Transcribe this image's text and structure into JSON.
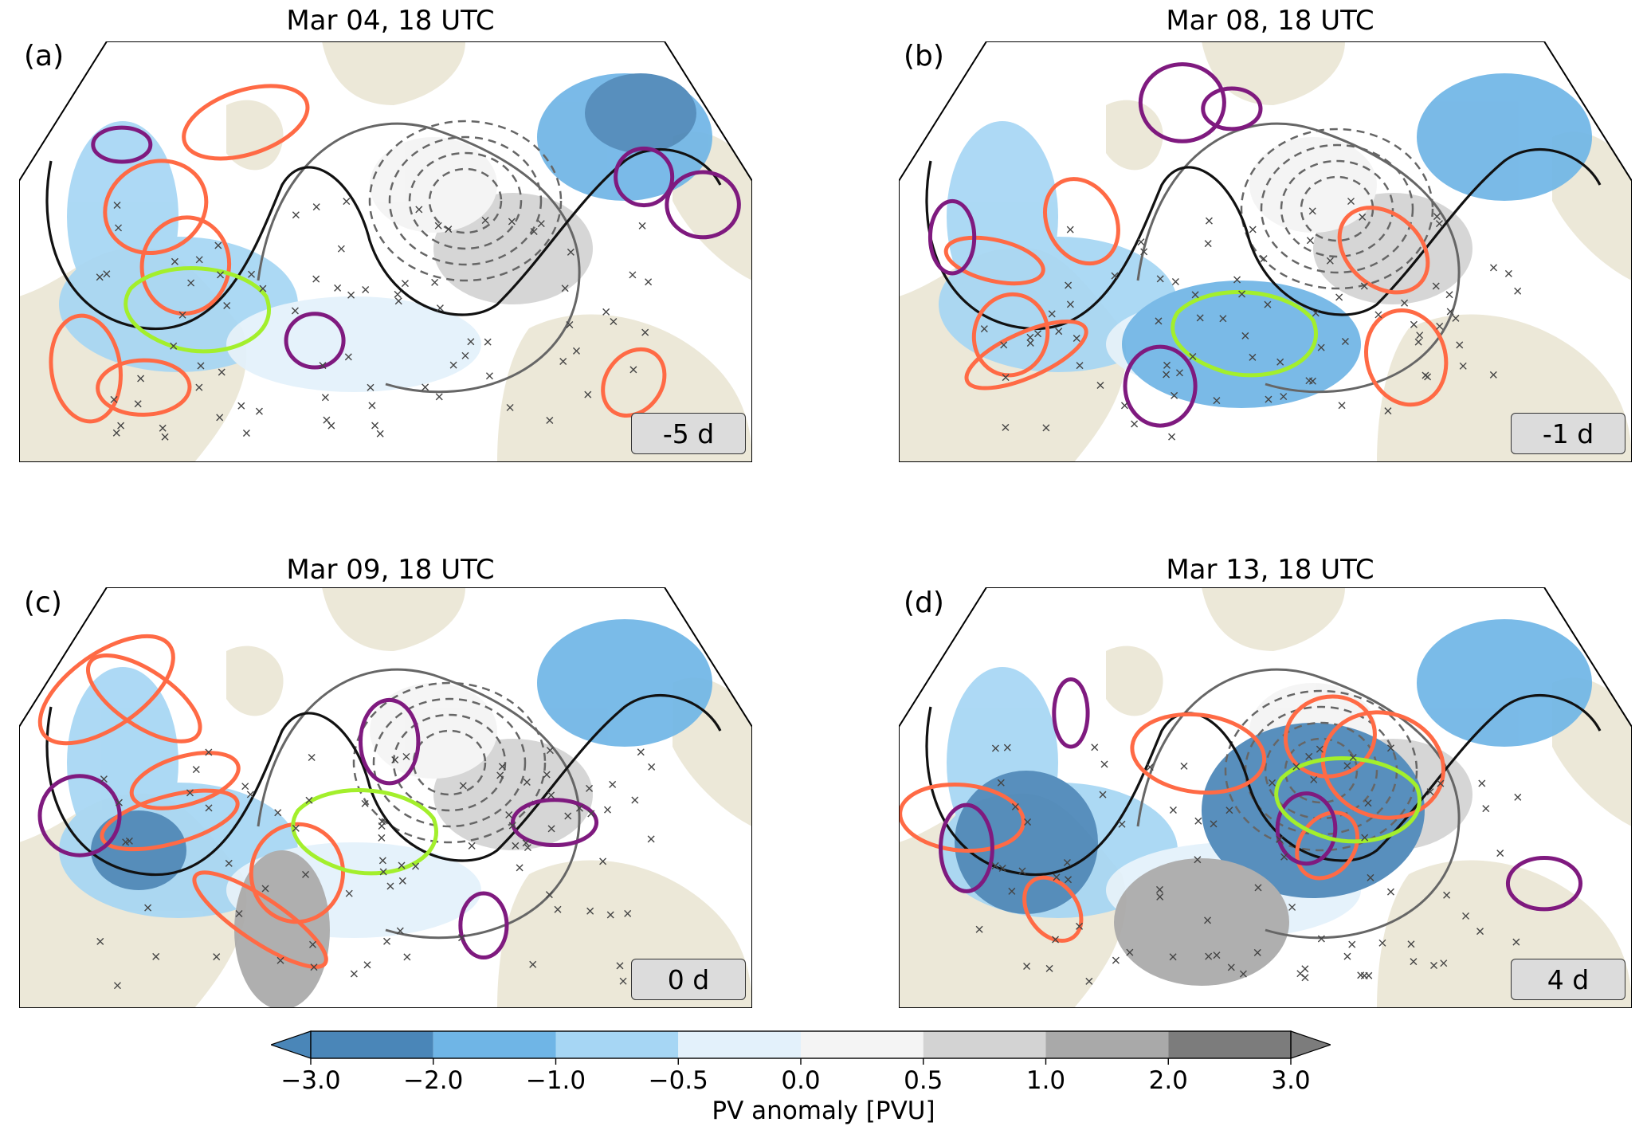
{
  "panels": [
    {
      "letter": "(a)",
      "title": "Mar 04, 18 UTC",
      "lead": "-5 d"
    },
    {
      "letter": "(b)",
      "title": "Mar 08, 18 UTC",
      "lead": "-1 d"
    },
    {
      "letter": "(c)",
      "title": "Mar 09, 18 UTC",
      "lead": "0 d"
    },
    {
      "letter": "(d)",
      "title": "Mar 13, 18 UTC",
      "lead": "4 d"
    }
  ],
  "colorbar": {
    "label": "PV anomaly [PVU]",
    "ticks": [
      "−3.0",
      "−2.0",
      "−1.0",
      "−0.5",
      "0.0",
      "0.5",
      "1.0",
      "2.0",
      "3.0"
    ],
    "colors": [
      "#4a86b8",
      "#6fb5e6",
      "#a6d6f4",
      "#e3f1fb",
      "#ffffff",
      "#f4f4f4",
      "#d3d3d3",
      "#a9a9a9",
      "#7c7c7c"
    ]
  },
  "map_colors": {
    "ocean": "#ffffff",
    "land": "#ece8d8",
    "positive_contour": "#ff6a45",
    "negative_contour": "#7f1a7f",
    "cluster_contour": "#a3ef2c",
    "waveguide": "#111111",
    "climatology": "#666666"
  }
}
